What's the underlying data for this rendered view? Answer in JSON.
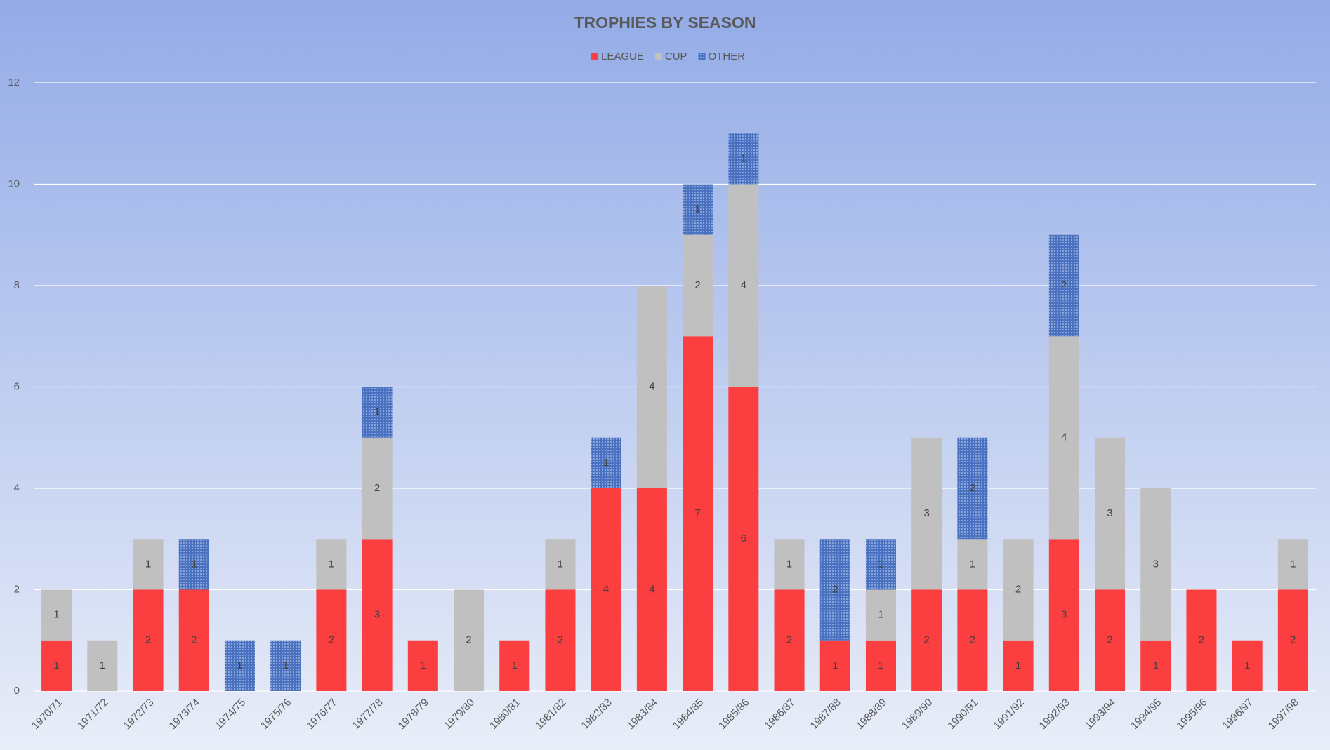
{
  "chart_data": {
    "type": "stacked-bar",
    "title": "TROPHIES BY SEASON",
    "categories": [
      "1970/71",
      "1971/72",
      "1972/73",
      "1973/74",
      "1974/75",
      "1975/76",
      "1976/77",
      "1977/78",
      "1978/79",
      "1979/80",
      "1980/81",
      "1981/82",
      "1982/83",
      "1983/84",
      "1984/85",
      "1985/86",
      "1986/87",
      "1987/88",
      "1988/89",
      "1989/90",
      "1990/91",
      "1991/92",
      "1992/93",
      "1993/94",
      "1994/95",
      "1995/96",
      "1996/97",
      "1997/98"
    ],
    "series": [
      {
        "name": "LEAGUE",
        "color": "#fb3f41",
        "values": [
          1,
          0,
          2,
          2,
          0,
          0,
          2,
          3,
          1,
          0,
          1,
          2,
          4,
          4,
          7,
          6,
          2,
          1,
          1,
          2,
          2,
          1,
          3,
          2,
          1,
          2,
          1,
          2
        ]
      },
      {
        "name": "CUP",
        "color": "#c0c0c0",
        "values": [
          1,
          1,
          1,
          0,
          0,
          0,
          1,
          2,
          0,
          2,
          0,
          1,
          0,
          4,
          2,
          4,
          1,
          0,
          1,
          3,
          1,
          2,
          4,
          3,
          3,
          0,
          0,
          1
        ]
      },
      {
        "name": "OTHER",
        "color": "#4a72c0",
        "values": [
          0,
          0,
          0,
          1,
          1,
          1,
          0,
          1,
          0,
          0,
          0,
          0,
          1,
          0,
          1,
          1,
          0,
          2,
          1,
          0,
          2,
          0,
          2,
          0,
          0,
          0,
          0,
          0
        ]
      }
    ],
    "ylim": [
      0,
      12
    ],
    "yticks": [
      0,
      2,
      4,
      6,
      8,
      10,
      12
    ],
    "grid": true,
    "legend": "top"
  }
}
